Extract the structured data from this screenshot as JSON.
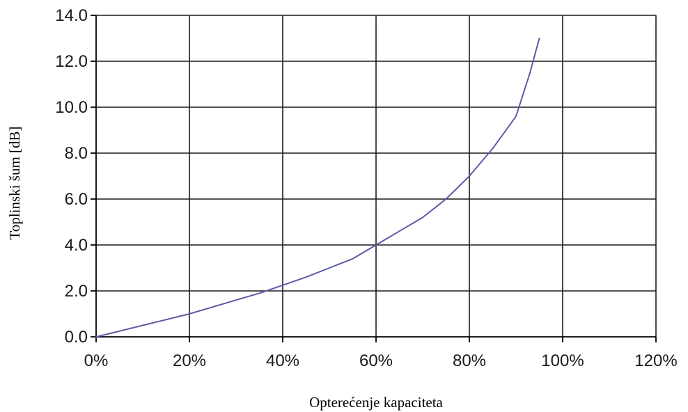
{
  "chart_data": {
    "type": "line",
    "title": "",
    "xlabel": "Opterećenje kapaciteta",
    "ylabel": "Toplinski šum [dB]",
    "xlim": [
      0,
      1.2
    ],
    "ylim": [
      0,
      14
    ],
    "x_ticks": [
      0,
      0.2,
      0.4,
      0.6,
      0.8,
      1.0,
      1.2
    ],
    "x_tick_labels": [
      "0%",
      "20%",
      "40%",
      "60%",
      "80%",
      "100%",
      "120%"
    ],
    "y_ticks": [
      0,
      2,
      4,
      6,
      8,
      10,
      12,
      14
    ],
    "y_tick_labels": [
      "0.0",
      "2.0",
      "4.0",
      "6.0",
      "8.0",
      "10.0",
      "12.0",
      "14.0"
    ],
    "grid": true,
    "legend": "none",
    "series": [
      {
        "color": "#5a5aa8",
        "x": [
          0,
          0.05,
          0.1,
          0.15,
          0.2,
          0.25,
          0.3,
          0.35,
          0.4,
          0.45,
          0.5,
          0.55,
          0.6,
          0.65,
          0.7,
          0.75,
          0.8,
          0.85,
          0.9,
          0.93,
          0.95
        ],
        "y": [
          0.0,
          0.25,
          0.5,
          0.75,
          1.0,
          1.3,
          1.6,
          1.9,
          2.25,
          2.6,
          3.0,
          3.4,
          4.0,
          4.6,
          5.2,
          6.0,
          7.0,
          8.2,
          9.6,
          11.5,
          13.0
        ]
      }
    ]
  }
}
